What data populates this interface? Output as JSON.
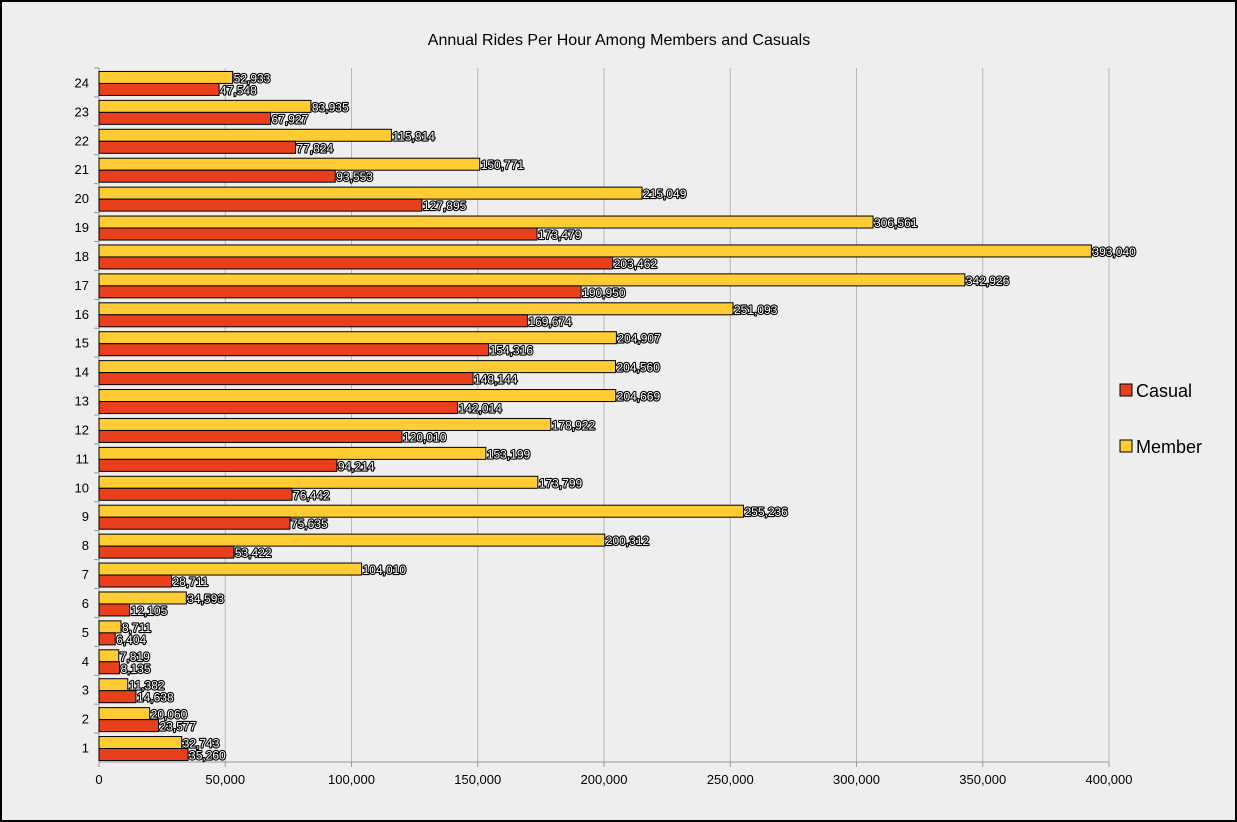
{
  "chart_data": {
    "type": "bar",
    "orientation": "horizontal",
    "title": "Annual Rides Per Hour Among Members and Casuals",
    "xlabel": "",
    "ylabel": "",
    "categories": [
      "1",
      "2",
      "3",
      "4",
      "5",
      "6",
      "7",
      "8",
      "9",
      "10",
      "11",
      "12",
      "13",
      "14",
      "15",
      "16",
      "17",
      "18",
      "19",
      "20",
      "21",
      "22",
      "23",
      "24"
    ],
    "series": [
      {
        "name": "Casual",
        "color": "#e8401c",
        "values": [
          35260,
          23577,
          14638,
          8135,
          6404,
          12105,
          28711,
          53422,
          75635,
          76442,
          94214,
          120010,
          142014,
          148144,
          154316,
          169674,
          190950,
          203462,
          173479,
          127895,
          93553,
          77824,
          67927,
          47548
        ],
        "labels": [
          "35,260",
          "23,577",
          "14,638",
          "8,135",
          "6,404",
          "12,105",
          "28,711",
          "53,422",
          "75,635",
          "76,442",
          "94,214",
          "120,010",
          "142,014",
          "148,144",
          "154,316",
          "169,674",
          "190,950",
          "203,462",
          "173,479",
          "127,895",
          "93,553",
          "77,824",
          "67,927",
          "47,548"
        ]
      },
      {
        "name": "Member",
        "color": "#ffcc33",
        "values": [
          32743,
          20060,
          11382,
          7819,
          8711,
          34593,
          104010,
          200312,
          255236,
          173799,
          153199,
          178922,
          204669,
          204560,
          204907,
          251093,
          342926,
          393040,
          306561,
          215049,
          150771,
          115814,
          83935,
          52933
        ],
        "labels": [
          "32,743",
          "20,060",
          "11,382",
          "7,819",
          "8,711",
          "34,593",
          "104,010",
          "200,312",
          "255,236",
          "173,799",
          "153,199",
          "178,922",
          "204,669",
          "204,560",
          "204,907",
          "251,093",
          "342,926",
          "393,040",
          "306,561",
          "215,049",
          "150,771",
          "115,814",
          "83,935",
          "52,933"
        ]
      }
    ],
    "xlim": [
      0,
      400000
    ],
    "xticks": [
      0,
      50000,
      100000,
      150000,
      200000,
      250000,
      300000,
      350000,
      400000
    ],
    "xtick_labels": [
      "0",
      "50,000",
      "100,000",
      "150,000",
      "200,000",
      "250,000",
      "300,000",
      "350,000",
      "400,000"
    ],
    "grid": true,
    "legend_position": "right",
    "legend": [
      "Casual",
      "Member"
    ]
  }
}
